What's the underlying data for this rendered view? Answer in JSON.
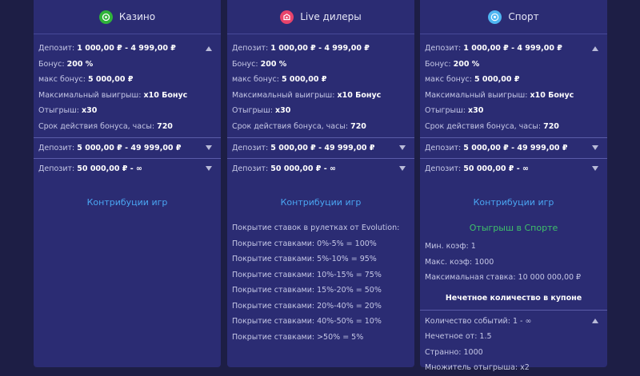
{
  "colors": {
    "background": "#1d1e45",
    "card": "#2b2c73",
    "link": "#4aa5f2",
    "green": "#3fc06a",
    "casino_icon": "#2fb33a",
    "live_icon": "#e8436b",
    "sport_icon": "#4fb6f2"
  },
  "cards": [
    {
      "title": "Казино",
      "icon": "casino-chip-icon",
      "open_tier": {
        "rows": [
          {
            "label": "Депозит:",
            "value": "1 000,00 ₽ - 4 999,00 ₽"
          },
          {
            "label": "Бонус:",
            "value": "200 %"
          },
          {
            "label": "макс бонус:",
            "value": "5 000,00 ₽"
          },
          {
            "label": "Максимальный выигрыш:",
            "value": "x10 Бонус"
          },
          {
            "label": "Отыгрыш:",
            "value": "x30"
          },
          {
            "label": "Срок действия бонуса, часы:",
            "value": "720"
          }
        ]
      },
      "closed_tiers": [
        {
          "label": "Депозит:",
          "value": "5 000,00 ₽ - 49 999,00 ₽"
        },
        {
          "label": "Депозит:",
          "value": "50 000,00 ₽ - ∞"
        }
      ],
      "contrib_link": "Контрибуции игр"
    },
    {
      "title": "Live дилеры",
      "icon": "live-dealer-icon",
      "open_tier": {
        "rows": [
          {
            "label": "Депозит:",
            "value": "1 000,00 ₽ - 4 999,00 ₽"
          },
          {
            "label": "Бонус:",
            "value": "200 %"
          },
          {
            "label": "макс бонус:",
            "value": "5 000,00 ₽"
          },
          {
            "label": "Максимальный выигрыш:",
            "value": "x10 Бонус"
          },
          {
            "label": "Отыгрыш:",
            "value": "x30"
          },
          {
            "label": "Срок действия бонуса, часы:",
            "value": "720"
          }
        ]
      },
      "closed_tiers": [
        {
          "label": "Депозит:",
          "value": "5 000,00 ₽ - 49 999,00 ₽"
        },
        {
          "label": "Депозит:",
          "value": "50 000,00 ₽ - ∞"
        }
      ],
      "contrib_link": "Контрибуции игр",
      "contrib_list": [
        "Покрытие ставок в рулетках от Evolution:",
        "Покрытие ставками: 0%-5% = 100%",
        "Покрытие ставками: 5%-10% = 95%",
        "Покрытие ставками: 10%-15% = 75%",
        "Покрытие ставками: 15%-20% = 50%",
        "Покрытие ставками: 20%-40% = 20%",
        "Покрытие ставками: 40%-50% = 10%",
        "Покрытие ставками: >50% = 5%"
      ]
    },
    {
      "title": "Спорт",
      "icon": "soccer-ball-icon",
      "open_tier": {
        "rows": [
          {
            "label": "Депозит:",
            "value": "1 000,00 ₽ - 4 999,00 ₽"
          },
          {
            "label": "Бонус:",
            "value": "200 %"
          },
          {
            "label": "макс бонус:",
            "value": "5 000,00 ₽"
          },
          {
            "label": "Максимальный выигрыш:",
            "value": "x10 Бонус"
          },
          {
            "label": "Отыгрыш:",
            "value": "x30"
          },
          {
            "label": "Срок действия бонуса, часы:",
            "value": "720"
          }
        ]
      },
      "closed_tiers": [
        {
          "label": "Депозит:",
          "value": "5 000,00 ₽ - 49 999,00 ₽"
        },
        {
          "label": "Депозит:",
          "value": "50 000,00 ₽ - ∞"
        }
      ],
      "contrib_link": "Контрибуции игр",
      "wager_title": "Отыгрыш в Спорте",
      "wager_rows": [
        "Мин. коэф: 1",
        "Макс. коэф: 1000",
        "Максимальная ставка: 10 000 000,00 ₽"
      ],
      "odd_title": "Нечетное количество в купоне",
      "odd_rows": [
        "Количество событий: 1 - ∞",
        "Нечетное от: 1.5",
        "Странно: 1000",
        "Множитель отыгрыша: x2"
      ]
    }
  ]
}
